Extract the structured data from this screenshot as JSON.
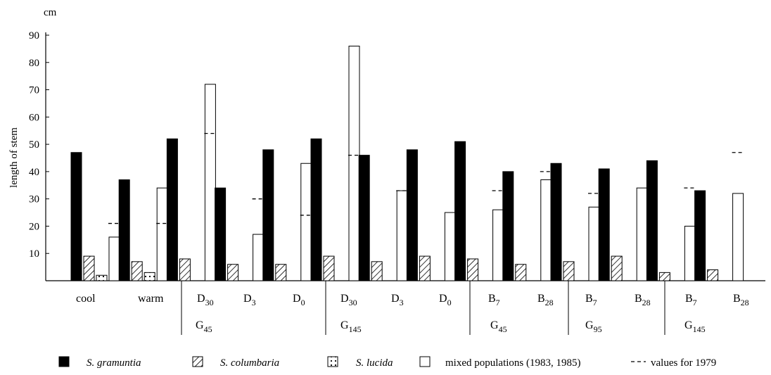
{
  "chart_data": {
    "type": "bar",
    "y_unit": "cm",
    "ylabel": "length of stem",
    "ylim": [
      0,
      90
    ],
    "yticks": [
      10,
      20,
      30,
      40,
      50,
      60,
      70,
      80,
      90
    ],
    "grid": false,
    "legend_position": "bottom",
    "categories": [
      {
        "label": "cool"
      },
      {
        "label": "warm"
      },
      {
        "label": "D",
        "sub": "30"
      },
      {
        "label": "D",
        "sub": "3"
      },
      {
        "label": "D",
        "sub": "0"
      },
      {
        "label": "D",
        "sub": "30"
      },
      {
        "label": "D",
        "sub": "3"
      },
      {
        "label": "D",
        "sub": "0"
      },
      {
        "label": "B",
        "sub": "7"
      },
      {
        "label": "B",
        "sub": "28"
      },
      {
        "label": "B",
        "sub": "7"
      },
      {
        "label": "B",
        "sub": "28"
      },
      {
        "label": "B",
        "sub": "7"
      },
      {
        "label": "B",
        "sub": "28"
      }
    ],
    "groups": [
      {
        "label": "G",
        "sub": "45",
        "span": [
          2,
          4
        ]
      },
      {
        "label": "G",
        "sub": "145",
        "span": [
          5,
          7
        ]
      },
      {
        "label": "G",
        "sub": "45",
        "span": [
          8,
          9
        ]
      },
      {
        "label": "G",
        "sub": "95",
        "span": [
          10,
          11
        ]
      },
      {
        "label": "G",
        "sub": "145",
        "span": [
          12,
          13
        ]
      }
    ],
    "series": [
      {
        "name": "S. gramuntia",
        "pattern": "solid",
        "values": [
          47,
          37,
          52,
          34,
          48,
          52,
          46,
          48,
          51,
          40,
          43,
          41,
          44,
          33
        ]
      },
      {
        "name": "S. columbaria",
        "pattern": "hatch",
        "values": [
          9,
          7,
          8,
          6,
          6,
          9,
          7,
          9,
          8,
          6,
          7,
          9,
          3,
          4
        ]
      },
      {
        "name": "S. lucida",
        "pattern": "dots",
        "values": [
          2,
          3,
          null,
          null,
          null,
          null,
          null,
          null,
          null,
          null,
          null,
          null,
          null,
          null
        ]
      },
      {
        "name": "mixed populations (1983, 1985)",
        "pattern": "open",
        "values": [
          16,
          34,
          72,
          17,
          43,
          86,
          33,
          25,
          26,
          37,
          27,
          34,
          20,
          32
        ]
      }
    ],
    "values_1979": {
      "name": "values for 1979",
      "values": [
        21,
        21,
        54,
        30,
        24,
        46,
        33,
        null,
        33,
        40,
        32,
        null,
        34,
        47
      ]
    }
  }
}
